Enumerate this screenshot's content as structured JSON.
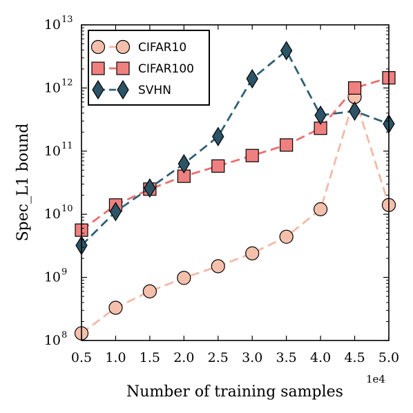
{
  "chart_data": {
    "type": "line",
    "xlabel": "Number of training samples",
    "ylabel": "Spec_L1 bound",
    "x_offset_label": "1e4",
    "xlim": [
      0.5,
      5.0
    ],
    "ylim_log10": [
      8,
      13
    ],
    "y_scale": "log",
    "grid": false,
    "legend_position": "top-left",
    "x_tick_labels": [
      "0.5",
      "1.0",
      "1.5",
      "2.0",
      "2.5",
      "3.0",
      "3.5",
      "4.0",
      "4.5",
      "5.0"
    ],
    "y_ticks": [
      {
        "base": "10",
        "exp": "8"
      },
      {
        "base": "10",
        "exp": "9"
      },
      {
        "base": "10",
        "exp": "10"
      },
      {
        "base": "10",
        "exp": "11"
      },
      {
        "base": "10",
        "exp": "12"
      },
      {
        "base": "10",
        "exp": "13"
      }
    ],
    "x": [
      0.5,
      1.0,
      1.5,
      2.0,
      2.5,
      3.0,
      3.5,
      4.0,
      4.5,
      5.0
    ],
    "series": [
      {
        "name": "CIFAR10",
        "marker": "circle",
        "line_color": "#f4b9a6",
        "fill_color": "#f4c0ac",
        "values": [
          130000000.0,
          330000000.0,
          600000000.0,
          980000000.0,
          1500000000.0,
          2400000000.0,
          4400000000.0,
          12000000000.0,
          720000000000.0,
          14000000000.0
        ]
      },
      {
        "name": "CIFAR100",
        "marker": "square",
        "line_color": "#ec6e6e",
        "fill_color": "#f08080",
        "values": [
          5600000000.0,
          14000000000.0,
          25000000000.0,
          40000000000.0,
          58000000000.0,
          85000000000.0,
          125000000000.0,
          230000000000.0,
          1000000000000.0,
          1450000000000.0
        ]
      },
      {
        "name": "SVHN",
        "marker": "diamond",
        "line_color": "#2e5f75",
        "fill_color": "#2c5466",
        "values": [
          3200000000.0,
          11000000000.0,
          26000000000.0,
          63000000000.0,
          170000000000.0,
          1400000000000.0,
          3900000000000.0,
          370000000000.0,
          430000000000.0,
          270000000000.0
        ]
      }
    ]
  }
}
